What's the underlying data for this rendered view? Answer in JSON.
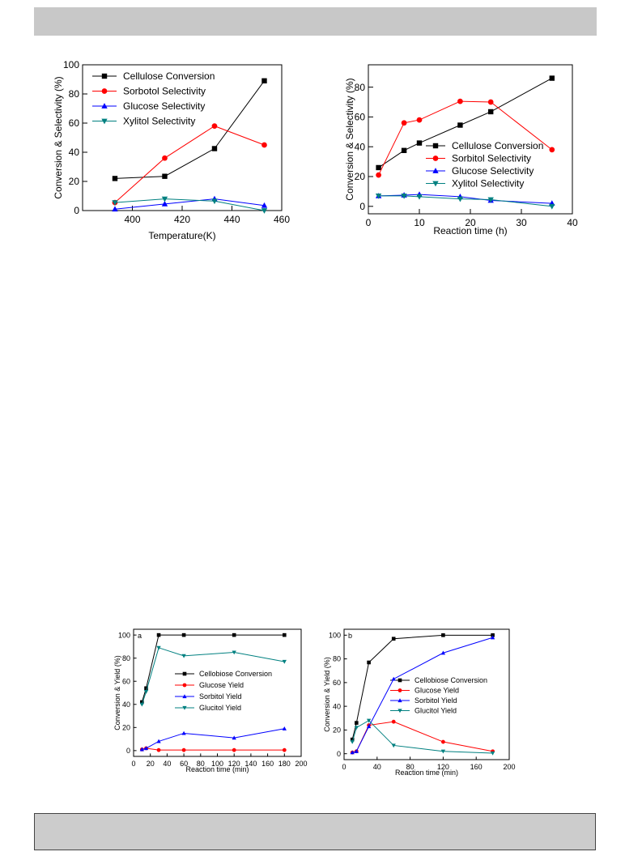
{
  "colors": {
    "black": "#000000",
    "red": "#ff0000",
    "blue": "#0000ff",
    "teal": "#008080"
  },
  "chart_data": [
    {
      "type": "line",
      "xlabel": "Temperature(K)",
      "ylabel": "Conversion & Selectivity (%)",
      "xlim": [
        380,
        460
      ],
      "ylim": [
        0,
        100
      ],
      "xticks": [
        400,
        420,
        440,
        460
      ],
      "yticks": [
        0,
        20,
        40,
        60,
        80,
        100
      ],
      "legend_position": "top-left",
      "series": [
        {
          "name": "Cellulose Conversion",
          "color": "#000000",
          "marker": "square",
          "points": [
            [
              393,
              22
            ],
            [
              413,
              23.5
            ],
            [
              433,
              42.5
            ],
            [
              453,
              89
            ]
          ]
        },
        {
          "name": "Sorbotol Selectivity",
          "color": "#ff0000",
          "marker": "circle",
          "points": [
            [
              393,
              5.5
            ],
            [
              413,
              36
            ],
            [
              433,
              58
            ],
            [
              453,
              45
            ]
          ]
        },
        {
          "name": "Glucose Selectivity",
          "color": "#0000ff",
          "marker": "triangle-up",
          "points": [
            [
              393,
              1
            ],
            [
              413,
              4.5
            ],
            [
              433,
              8
            ],
            [
              453,
              3.5
            ]
          ]
        },
        {
          "name": "Xylitol Selectivity",
          "color": "#008080",
          "marker": "triangle-down",
          "points": [
            [
              393,
              5.5
            ],
            [
              413,
              8
            ],
            [
              433,
              6.5
            ],
            [
              453,
              0
            ]
          ]
        }
      ]
    },
    {
      "type": "line",
      "xlabel": "Reaction time (h)",
      "ylabel": "Conversion & Selectivity (%)",
      "xlim": [
        0,
        40
      ],
      "ylim": [
        -5,
        95
      ],
      "xticks": [
        0,
        10,
        20,
        30,
        40
      ],
      "yticks": [
        0,
        20,
        40,
        60,
        80
      ],
      "legend_position": "center-right",
      "series": [
        {
          "name": "Cellulose Conversion",
          "color": "#000000",
          "marker": "square",
          "points": [
            [
              2,
              26
            ],
            [
              7,
              37.5
            ],
            [
              10,
              42.5
            ],
            [
              18,
              54.5
            ],
            [
              24,
              63.5
            ],
            [
              36,
              86
            ]
          ]
        },
        {
          "name": "Sorbitol Selectivity",
          "color": "#ff0000",
          "marker": "circle",
          "points": [
            [
              2,
              21
            ],
            [
              7,
              56
            ],
            [
              10,
              58
            ],
            [
              18,
              70.5
            ],
            [
              24,
              70
            ],
            [
              36,
              38
            ]
          ]
        },
        {
          "name": "Glucose Selectivity",
          "color": "#0000ff",
          "marker": "triangle-up",
          "points": [
            [
              2,
              7
            ],
            [
              7,
              7.5
            ],
            [
              10,
              8
            ],
            [
              18,
              6.5
            ],
            [
              24,
              4
            ],
            [
              36,
              2
            ]
          ]
        },
        {
          "name": "Xylitol Selectivity",
          "color": "#008080",
          "marker": "triangle-down",
          "points": [
            [
              2,
              7
            ],
            [
              7,
              7
            ],
            [
              10,
              6.5
            ],
            [
              18,
              5
            ],
            [
              24,
              4.5
            ],
            [
              36,
              0
            ]
          ]
        }
      ]
    },
    {
      "type": "line",
      "panel_label": "a",
      "xlabel": "Reaction time (min)",
      "ylabel": "Conversion & Yield (%)",
      "xlim": [
        0,
        200
      ],
      "ylim": [
        -5,
        105
      ],
      "xticks": [
        0,
        20,
        40,
        60,
        80,
        100,
        120,
        140,
        160,
        180,
        200
      ],
      "yticks": [
        0,
        20,
        40,
        60,
        80,
        100
      ],
      "legend_position": "center-right",
      "series": [
        {
          "name": "Cellobiose Conversion",
          "color": "#000000",
          "marker": "square",
          "points": [
            [
              10,
              42
            ],
            [
              15,
              54
            ],
            [
              30,
              100
            ],
            [
              60,
              100
            ],
            [
              120,
              100
            ],
            [
              180,
              100
            ]
          ]
        },
        {
          "name": "Glucose Yield",
          "color": "#ff0000",
          "marker": "circle",
          "points": [
            [
              10,
              1
            ],
            [
              15,
              2
            ],
            [
              30,
              0.5
            ],
            [
              60,
              0.5
            ],
            [
              120,
              0.5
            ],
            [
              180,
              0.5
            ]
          ]
        },
        {
          "name": "Sorbitol Yield",
          "color": "#0000ff",
          "marker": "triangle-up",
          "points": [
            [
              10,
              1
            ],
            [
              15,
              2
            ],
            [
              30,
              8
            ],
            [
              60,
              15
            ],
            [
              120,
              11
            ],
            [
              180,
              19
            ]
          ]
        },
        {
          "name": "Glucitol Yield",
          "color": "#008080",
          "marker": "triangle-down",
          "points": [
            [
              10,
              40
            ],
            [
              15,
              51
            ],
            [
              30,
              89
            ],
            [
              60,
              82
            ],
            [
              120,
              85
            ],
            [
              180,
              77
            ]
          ]
        }
      ]
    },
    {
      "type": "line",
      "panel_label": "b",
      "xlabel": "Reaction time (min)",
      "ylabel": "Conversion & Yield (%)",
      "xlim": [
        0,
        200
      ],
      "ylim": [
        -5,
        105
      ],
      "xticks": [
        0,
        40,
        80,
        120,
        160,
        200
      ],
      "yticks": [
        0,
        20,
        40,
        60,
        80,
        100
      ],
      "legend_position": "center-right",
      "series": [
        {
          "name": "Cellobiose Conversion",
          "color": "#000000",
          "marker": "square",
          "points": [
            [
              10,
              12
            ],
            [
              15,
              26
            ],
            [
              30,
              77
            ],
            [
              60,
              97
            ],
            [
              120,
              100
            ],
            [
              180,
              100
            ]
          ]
        },
        {
          "name": "Glucose Yield",
          "color": "#ff0000",
          "marker": "circle",
          "points": [
            [
              10,
              1
            ],
            [
              15,
              2
            ],
            [
              30,
              24
            ],
            [
              60,
              27
            ],
            [
              120,
              10
            ],
            [
              180,
              2
            ]
          ]
        },
        {
          "name": "Sorbitol Yield",
          "color": "#0000ff",
          "marker": "triangle-up",
          "points": [
            [
              10,
              1
            ],
            [
              15,
              2
            ],
            [
              30,
              23
            ],
            [
              60,
              63
            ],
            [
              120,
              85
            ],
            [
              180,
              98
            ]
          ]
        },
        {
          "name": "Glucitol Yield",
          "color": "#008080",
          "marker": "triangle-down",
          "points": [
            [
              10,
              10
            ],
            [
              15,
              22
            ],
            [
              30,
              28
            ],
            [
              60,
              7
            ],
            [
              120,
              2
            ],
            [
              180,
              0.5
            ]
          ]
        }
      ]
    }
  ]
}
